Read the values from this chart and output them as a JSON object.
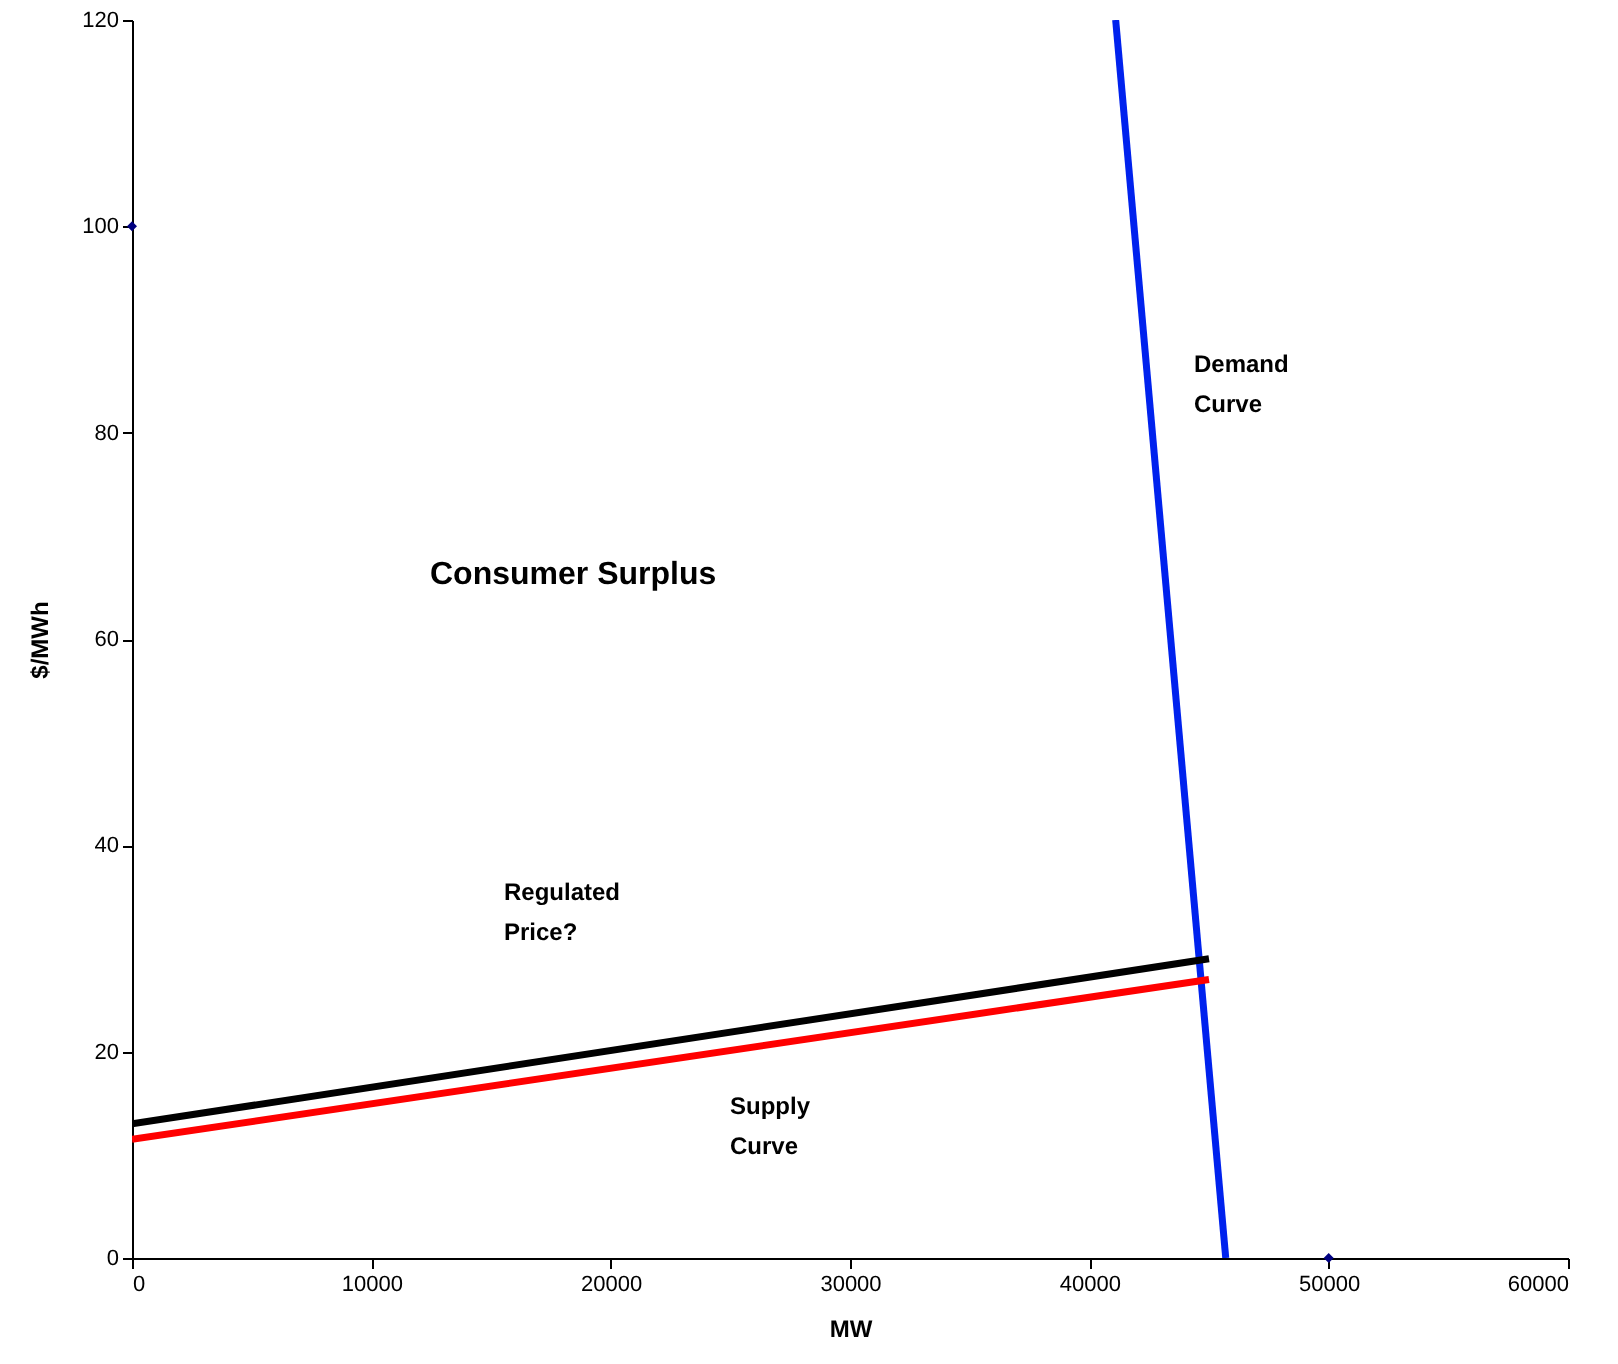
{
  "chart_data": {
    "type": "line",
    "xlabel": "MW",
    "ylabel": "$/MWh",
    "xlim": [
      0,
      60000
    ],
    "xticks": [
      0,
      10000,
      20000,
      30000,
      40000,
      50000,
      60000
    ],
    "ylim": [
      0,
      120
    ],
    "yticks": [
      0,
      20,
      40,
      60,
      80,
      100,
      120
    ],
    "grid": false,
    "series": [
      {
        "color": "#0022ee",
        "x": [
          41100,
          45700
        ],
        "values": [
          120,
          0
        ],
        "marker": "none"
      },
      {
        "color": "#000000",
        "x": [
          0,
          45000
        ],
        "values": [
          13,
          29
        ],
        "marker": "none"
      },
      {
        "color": "#ff0000",
        "x": [
          0,
          45000
        ],
        "values": [
          11.5,
          27
        ],
        "marker": "none"
      },
      {
        "type": "scatter",
        "color": "#000080",
        "x": [
          0,
          50000
        ],
        "values": [
          100,
          0
        ],
        "marker": "diamond"
      }
    ],
    "annotations": [
      "Consumer Surplus",
      "Demand Curve",
      "Regulated Price?",
      "Supply Curve"
    ]
  }
}
